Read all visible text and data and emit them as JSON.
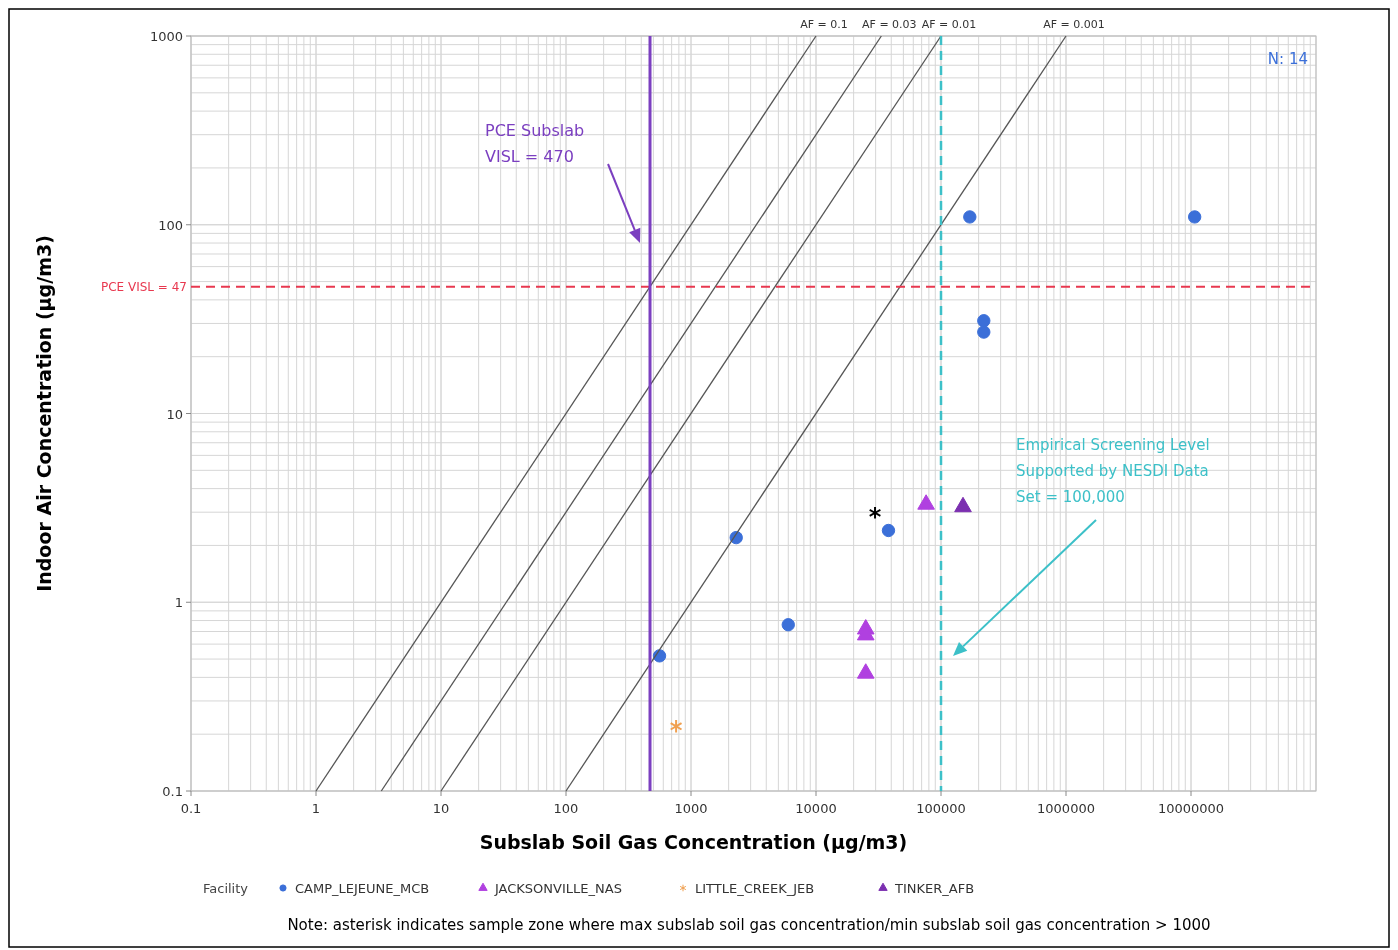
{
  "chart_data": {
    "type": "scatter",
    "xlabel": "Subslab Soil Gas Concentration (µg/m3)",
    "ylabel": "Indoor Air Concentration (µg/m3)",
    "legend_title": "Facility",
    "log": "xy",
    "xlim": [
      0.1,
      100000000
    ],
    "ylim": [
      0.1,
      1000
    ],
    "xticks": [
      0.1,
      1,
      10,
      100,
      1000,
      10000,
      100000,
      1000000,
      10000000
    ],
    "yticks": [
      0.1,
      1,
      10,
      100,
      1000
    ],
    "grid": true,
    "legend": "bottom",
    "series": [
      {
        "name": "CAMP_LEJEUNE_MCB",
        "color": "#3b6fd8",
        "marker": "circle",
        "x": [
          170000,
          10700000,
          220000,
          220000,
          560,
          2300,
          6000,
          38000
        ],
        "values": [
          110,
          110,
          31,
          27,
          0.52,
          2.2,
          0.76,
          2.4
        ]
      },
      {
        "name": "JACKSONVILLE_NAS",
        "color": "#b040e0",
        "marker": "triangle",
        "x": [
          76000,
          25000,
          25000,
          25000
        ],
        "values": [
          3.3,
          0.72,
          0.67,
          0.42
        ]
      },
      {
        "name": "LITTLE_CREEK_JEB",
        "color": "#f0a050",
        "marker": "cross",
        "x": [
          760
        ],
        "values": [
          0.22
        ]
      },
      {
        "name": "TINKER_AFB",
        "color": "#7b2fb0",
        "marker": "triangle",
        "x": [
          150000
        ],
        "values": [
          3.2
        ]
      },
      {
        "type": "line",
        "name": "AF = 0.1",
        "color": "#555555",
        "marker": "none",
        "line_style": "solid",
        "x": [
          1,
          10000
        ],
        "values": [
          0.1,
          1000
        ]
      },
      {
        "type": "line",
        "name": "AF = 0.03",
        "color": "#555555",
        "marker": "none",
        "line_style": "solid",
        "x": [
          3.33,
          33333
        ],
        "values": [
          0.1,
          1000
        ]
      },
      {
        "type": "line",
        "name": "AF = 0.01",
        "color": "#555555",
        "marker": "none",
        "line_style": "solid",
        "x": [
          10,
          100000
        ],
        "values": [
          0.1,
          1000
        ]
      },
      {
        "type": "line",
        "name": "AF = 0.001",
        "color": "#555555",
        "marker": "none",
        "line_style": "solid",
        "x": [
          100,
          1000000
        ],
        "values": [
          0.1,
          1000
        ]
      }
    ],
    "ref_lines": [
      {
        "axis": "y",
        "value": 47,
        "label": "PCE VISL = 47",
        "color": "#e8384f",
        "line_style": "dashed"
      },
      {
        "axis": "x",
        "value": 470,
        "label": "PCE Subslab\nVISL = 470",
        "color": "#7b3fc0",
        "line_style": "solid"
      },
      {
        "axis": "x",
        "value": 100000,
        "label": "Empirical Screening Level\nSupported by NESDI Data\nSet = 100,000",
        "color": "#3cc0c8",
        "line_style": "dashed"
      }
    ],
    "annotations": [
      "*",
      "N: 14",
      "Note: asterisk indicates sample zone where max subslab soil gas concentration/min subslab soil gas concentration > 1000"
    ]
  }
}
